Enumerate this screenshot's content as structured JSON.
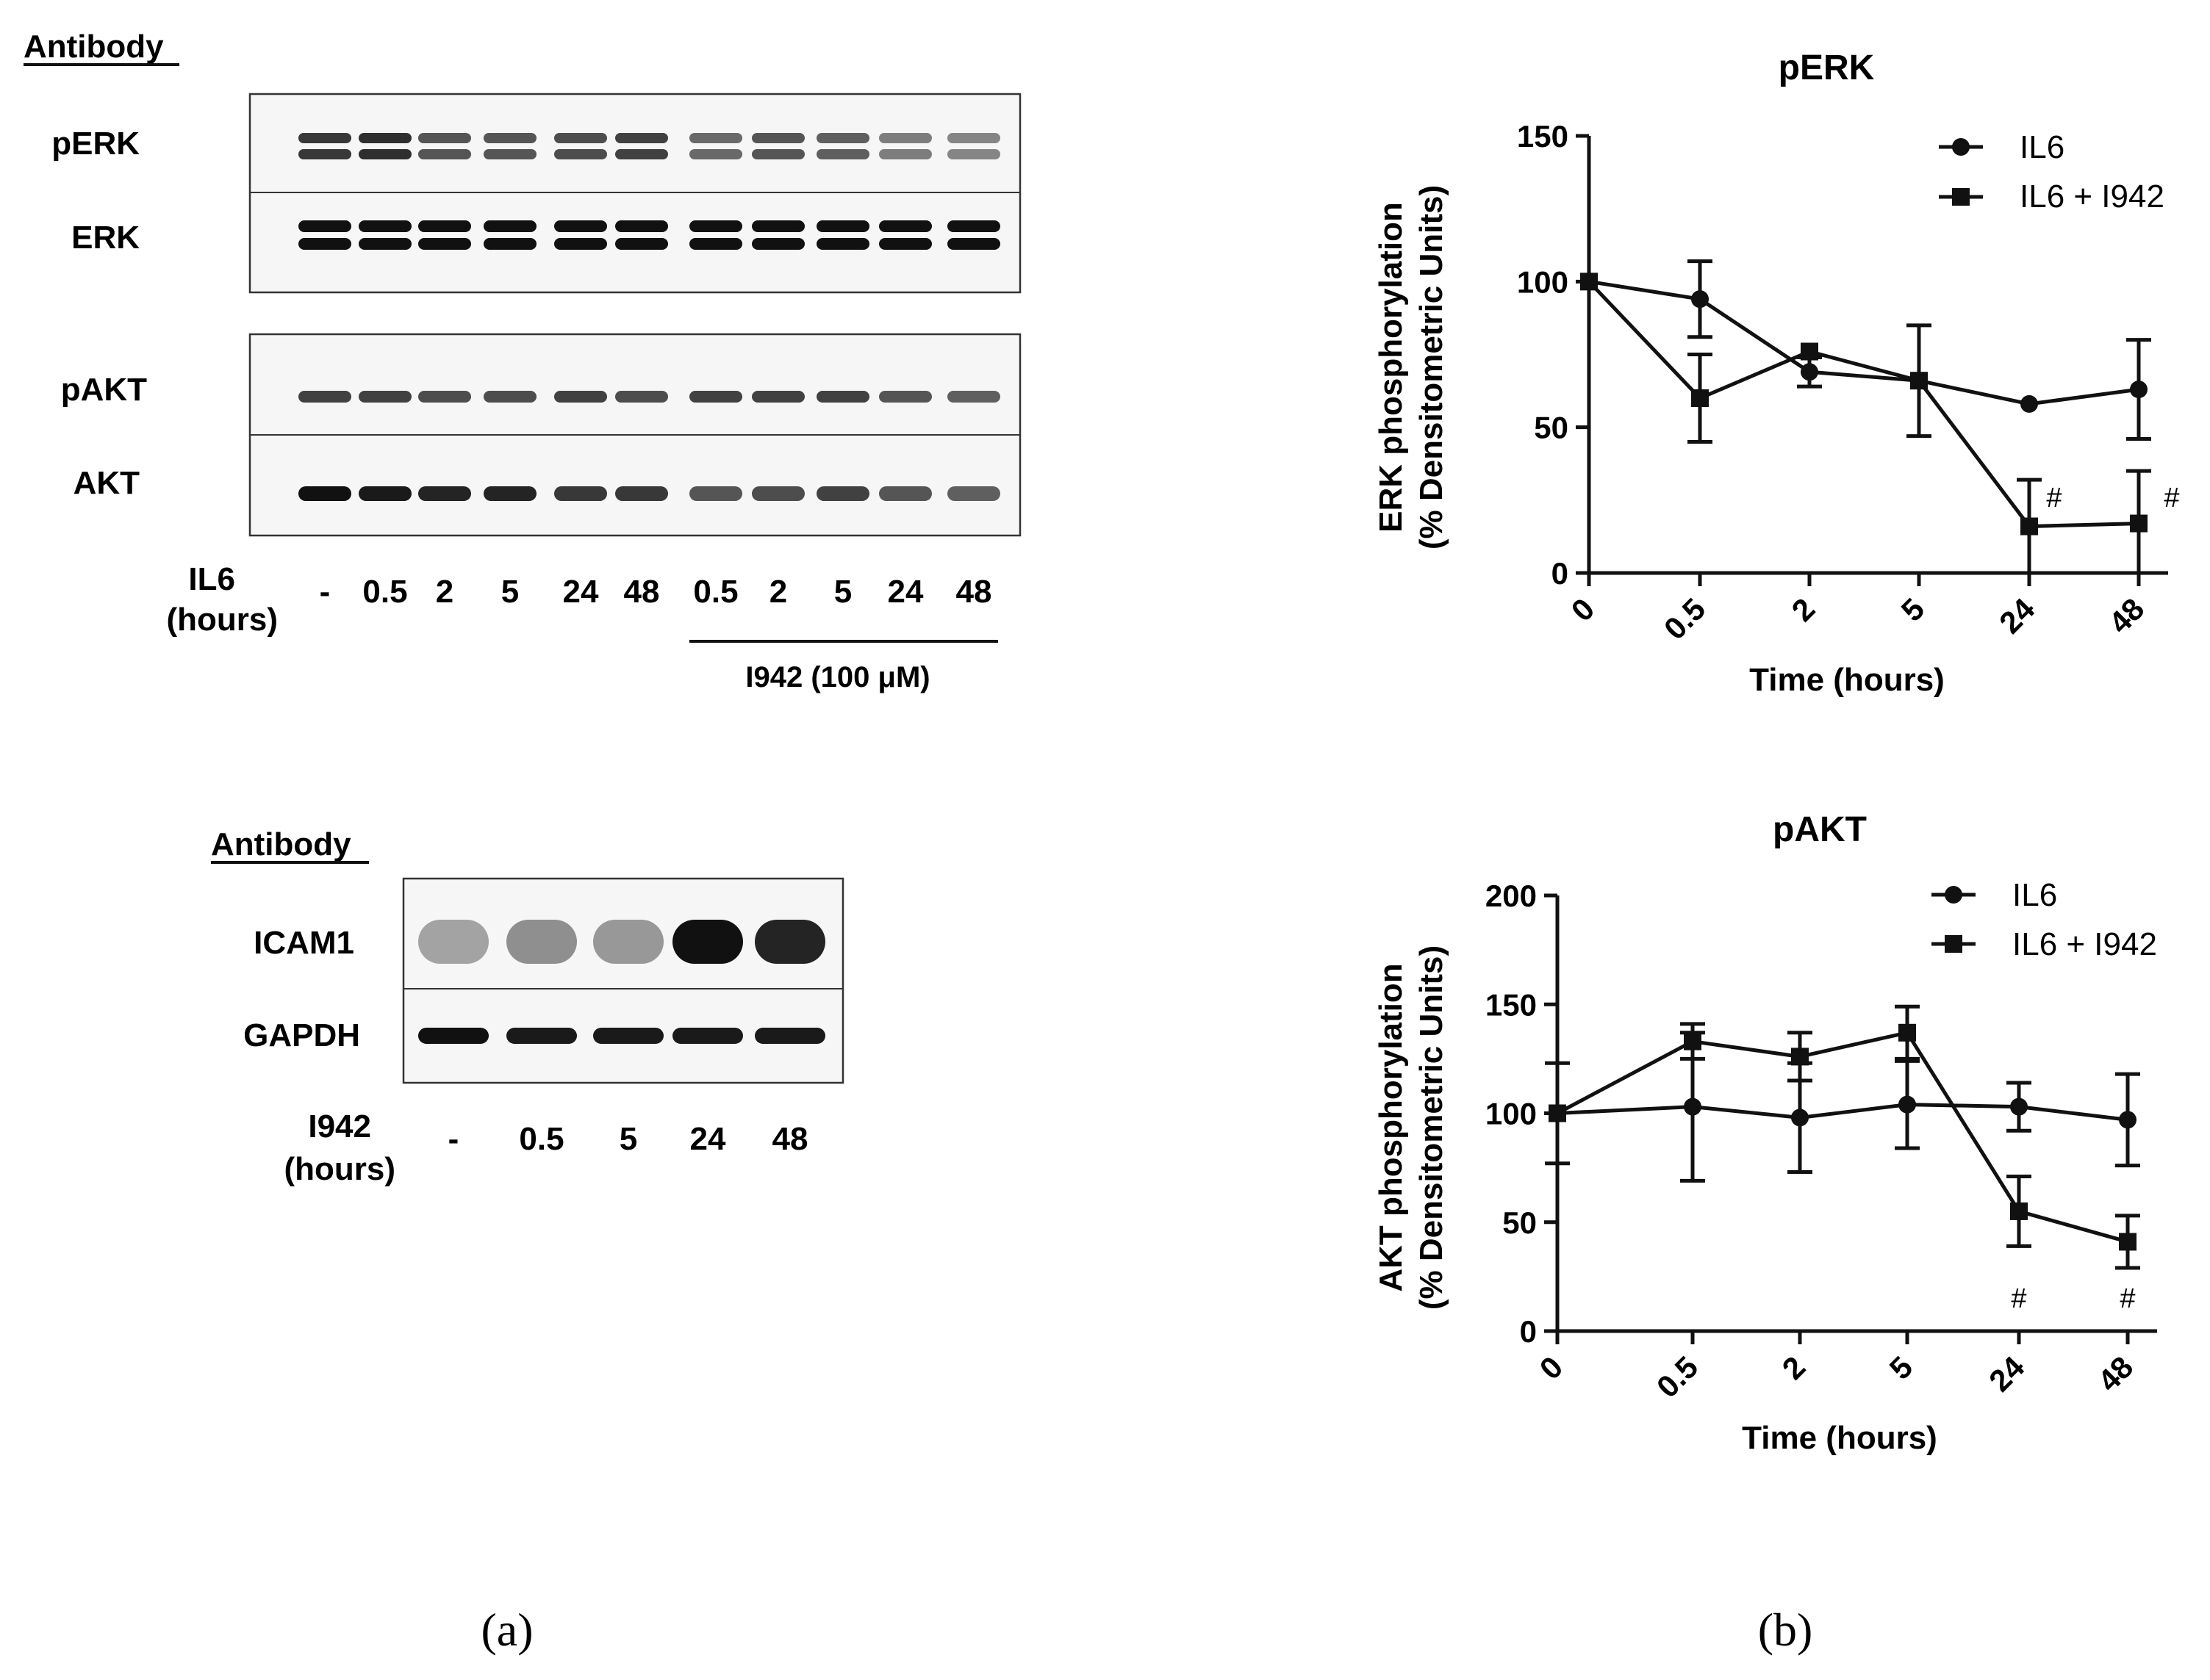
{
  "panel_a": {
    "antibody_heading": "Antibody",
    "blot1": {
      "rows": [
        "pERK",
        "ERK",
        "pAKT",
        "AKT"
      ],
      "treatment_label": [
        "IL6",
        "(hours)"
      ],
      "lanes": [
        "-",
        "0.5",
        "2",
        "5",
        "24",
        "48",
        "0.5",
        "2",
        "5",
        "24",
        "48"
      ],
      "inhibitor_label": "I942 (100 μM)",
      "band_intensity": {
        "pERK": [
          0.8,
          0.85,
          0.65,
          0.65,
          0.7,
          0.75,
          0.55,
          0.65,
          0.6,
          0.45,
          0.4
        ],
        "ERK": [
          1,
          1,
          1,
          1,
          1,
          1,
          1,
          1,
          1,
          1,
          1
        ],
        "pAKT": [
          0.75,
          0.75,
          0.7,
          0.7,
          0.75,
          0.7,
          0.75,
          0.75,
          0.75,
          0.65,
          0.6
        ],
        "AKT": [
          1,
          0.95,
          0.9,
          0.9,
          0.8,
          0.8,
          0.65,
          0.7,
          0.75,
          0.65,
          0.6
        ]
      }
    },
    "blot2": {
      "heading": "Antibody",
      "rows": [
        "ICAM1",
        "GAPDH"
      ],
      "treatment_label": [
        "I942",
        "(hours)"
      ],
      "lanes": [
        "-",
        "0.5",
        "5",
        "24",
        "48"
      ],
      "band_intensity": {
        "ICAM1": [
          0.25,
          0.35,
          0.3,
          1,
          0.9
        ],
        "GAPDH": [
          1,
          0.95,
          0.95,
          0.95,
          0.95
        ]
      }
    },
    "panel_label": "(a)"
  },
  "panel_b_label": "(b)",
  "chart_data": [
    {
      "type": "line",
      "title": "pERK",
      "xlabel": "Time (hours)",
      "ylabel": [
        "ERK phosphorylation",
        "(% Densitometric Units)"
      ],
      "categories": [
        "0",
        "0.5",
        "2",
        "5",
        "24",
        "48"
      ],
      "ylim": [
        0,
        150
      ],
      "yticks": [
        0,
        50,
        100,
        150
      ],
      "legend": "top-right",
      "series": [
        {
          "name": "IL6",
          "marker": "circle",
          "values": [
            100,
            94,
            69,
            66,
            58,
            63
          ],
          "errors": [
            0,
            13,
            5,
            19,
            0,
            17
          ]
        },
        {
          "name": "IL6 + I942",
          "marker": "square",
          "values": [
            100,
            60,
            76,
            66,
            16,
            17
          ],
          "errors": [
            0,
            15,
            0,
            0,
            16,
            18
          ]
        }
      ],
      "annotations": [
        "#",
        "#"
      ]
    },
    {
      "type": "line",
      "title": "pAKT",
      "xlabel": "Time (hours)",
      "ylabel": [
        "AKT phosphorylation",
        "(% Densitometric Units)"
      ],
      "categories": [
        "0",
        "0.5",
        "2",
        "5",
        "24",
        "48"
      ],
      "ylim": [
        0,
        200
      ],
      "yticks": [
        0,
        50,
        100,
        150,
        200
      ],
      "legend": "top-right",
      "series": [
        {
          "name": "IL6",
          "marker": "circle",
          "values": [
            100,
            103,
            98,
            104,
            103,
            97
          ],
          "errors": [
            23,
            34,
            25,
            20,
            11,
            21
          ]
        },
        {
          "name": "IL6 + I942",
          "marker": "square",
          "values": [
            100,
            133,
            126,
            137,
            55,
            41
          ],
          "errors": [
            0,
            8,
            11,
            12,
            16,
            12
          ]
        }
      ],
      "annotations": [
        "#",
        "#"
      ]
    }
  ]
}
